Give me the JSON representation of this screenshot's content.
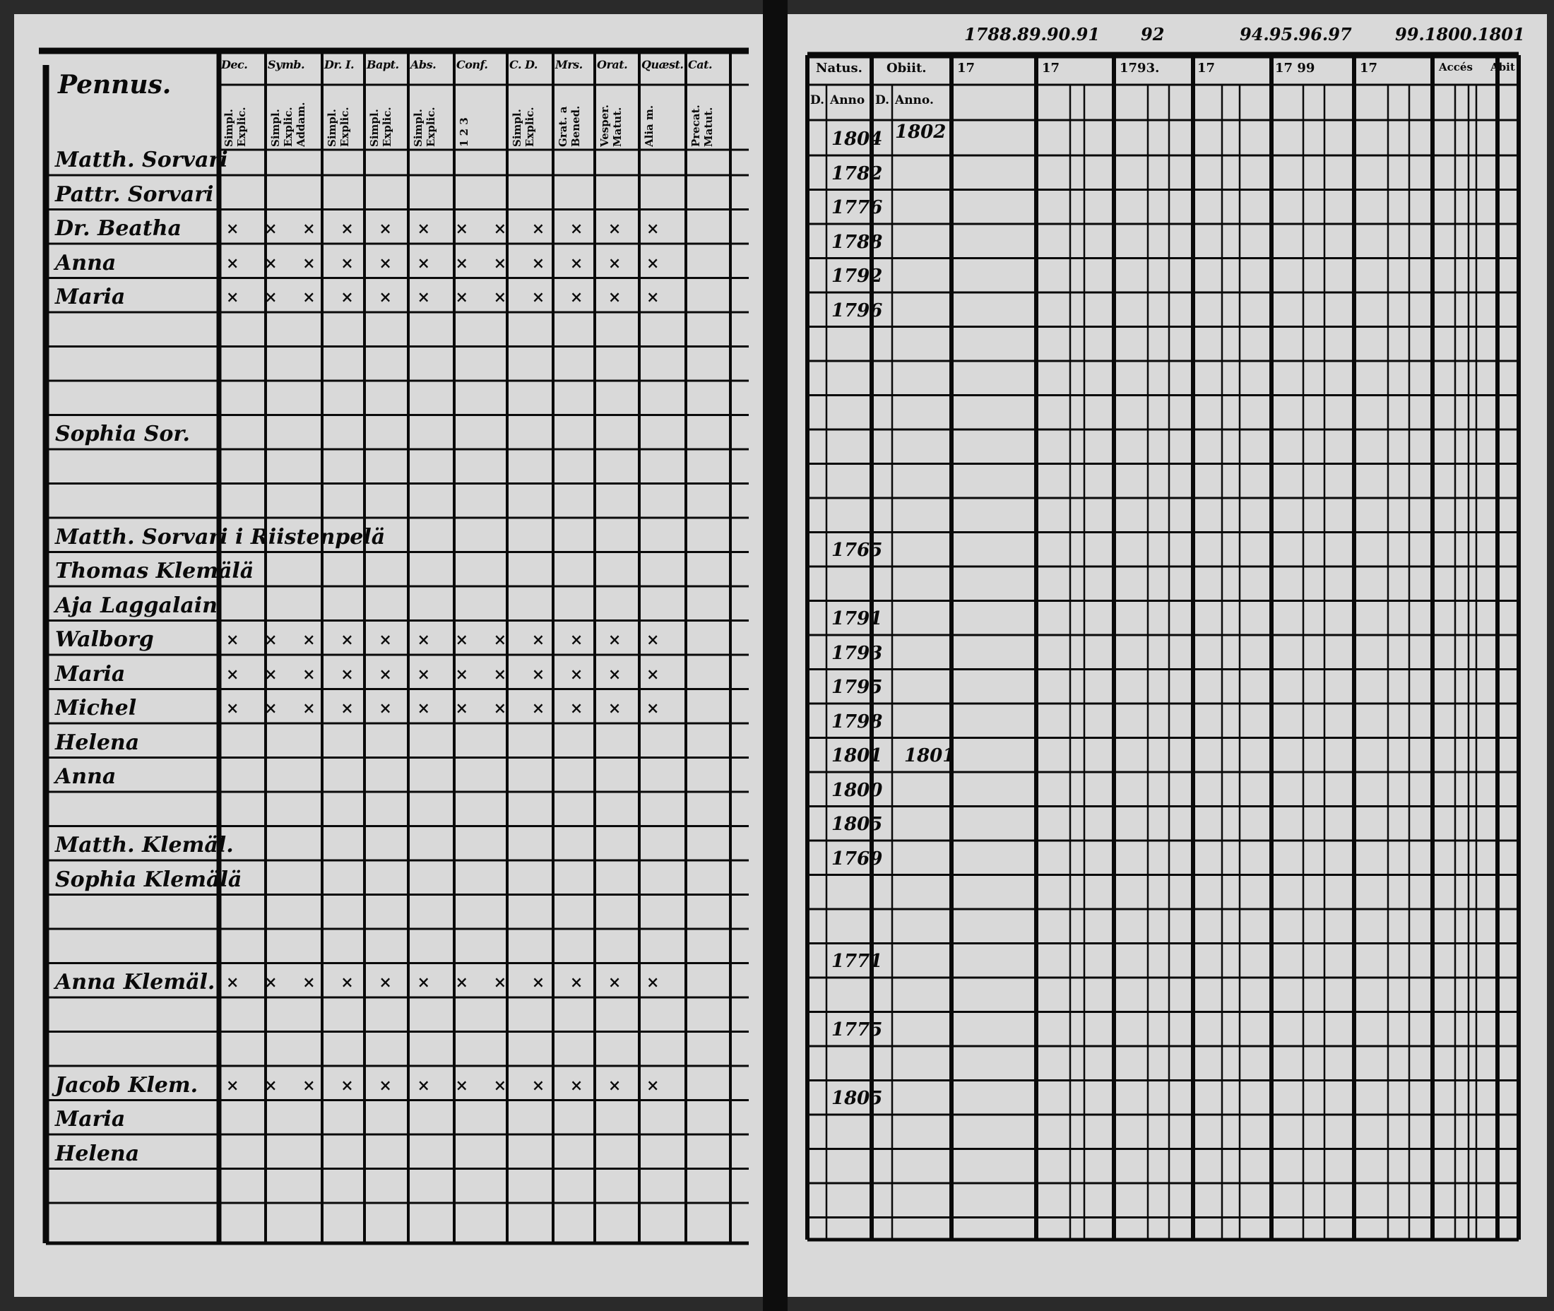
{
  "left_page": {
    "title": "Pennus.",
    "column_headers": [
      "Dec.",
      "Symb.",
      "Dr. I.",
      "Bapt.",
      "Abs.",
      "Conf.",
      "C. D.",
      "Mrs.",
      "Orat.",
      "Quæst.",
      "Cat."
    ],
    "sub_headers": [
      "Simpl. Explic.",
      "Simpl. Explic. Addam.",
      "Simpl. Explic.",
      "Simpl. Explic.",
      "Simpl. Explic.",
      "1  2  3",
      "Simpl. Explic.",
      "Grat. a Bened.",
      "Vesper. Matut.",
      "Alia m.",
      "Precat. Matut."
    ],
    "names": [
      "Matth. Sorvari",
      "Pattr. Sorvari",
      "Dr. Beatha",
      "Anna",
      "Maria",
      "Sophia Sor.",
      "Matth. Sorvari i Riistenpelä",
      "Thomas Klemälä",
      "Aja Laggalain",
      "Walborg",
      "Maria",
      "Michel",
      "Helena",
      "Anna",
      "Matth. Klemäl.",
      "Sophia Klemälä",
      "Anna Klemäl.",
      "Jacob Klem.",
      "Maria",
      "Helena"
    ],
    "marks": "× × × × × × × × × × × ×"
  },
  "right_page": {
    "top_notes": [
      "1788.89.90.91",
      "92",
      "94.95.96.97",
      "99.1800.1801"
    ],
    "column_headers": [
      "Natus.",
      "Obiit.",
      "17",
      "17",
      "1793.",
      "17",
      "17  99",
      "17",
      "Accés",
      "Abit"
    ],
    "sub_headers": [
      "D.",
      "Anno",
      "D.",
      "Anno."
    ],
    "natus_years": [
      "1804",
      "1782",
      "1776",
      "1788",
      "1792",
      "1796",
      "1765",
      "1791",
      "1793",
      "1795",
      "1798",
      "1801",
      "1800",
      "1805",
      "1769",
      "1771",
      "1775",
      "1805"
    ],
    "obiit_years": [
      "1802",
      "1801"
    ]
  },
  "colors": {
    "paper": "#d9d9d9",
    "ink": "#0a0a0a",
    "background": "#2a2a2a"
  }
}
